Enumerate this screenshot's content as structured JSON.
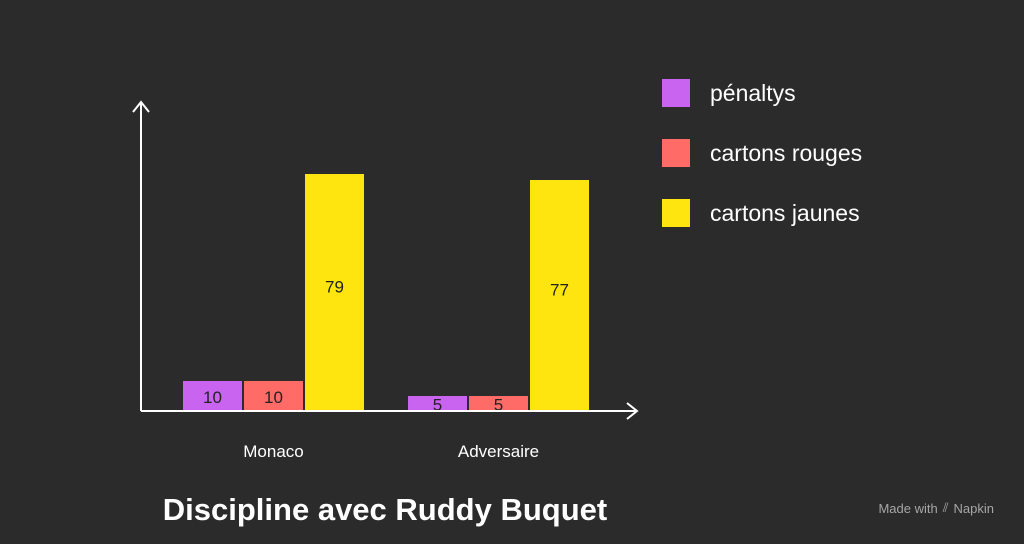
{
  "chart_data": {
    "type": "bar",
    "title": "Discipline avec Ruddy Buquet",
    "categories": [
      "Monaco",
      "Adversaire"
    ],
    "series": [
      {
        "name": "pénaltys",
        "values": [
          10,
          5
        ],
        "color": "#c864f0"
      },
      {
        "name": "cartons rouges",
        "values": [
          10,
          5
        ],
        "color": "#ff6b66"
      },
      {
        "name": "cartons jaunes",
        "values": [
          79,
          77
        ],
        "color": "#ffe50f"
      }
    ],
    "data_labels": true,
    "ylim": [
      0,
      100
    ],
    "grid": false,
    "legend_position": "top-right",
    "axis_color": "#ffffff",
    "label_color": "#222222"
  },
  "watermark": {
    "made_with": "Made with",
    "brand": "Napkin",
    "icon": "napkin-logo-icon"
  }
}
